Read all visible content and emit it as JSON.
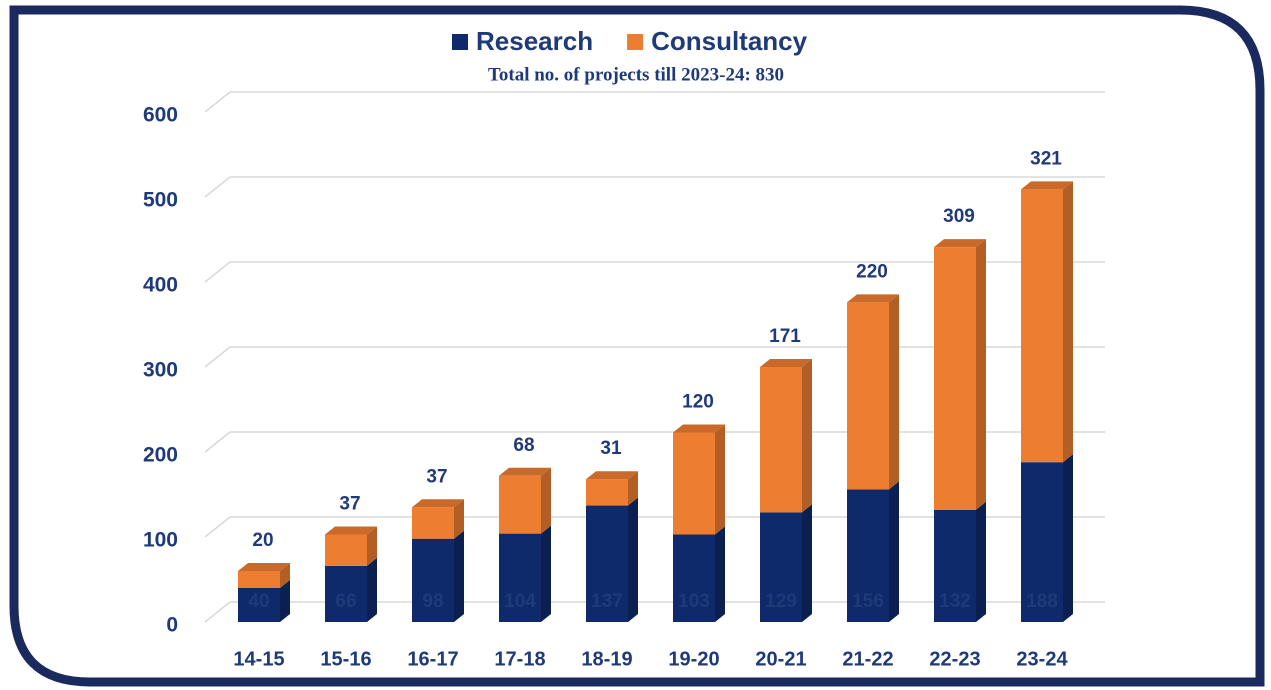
{
  "chart_data": {
    "type": "stacked_bar_3d",
    "subtitle": "Total no. of projects till 2023-24: 830",
    "categories": [
      "14-15",
      "15-16",
      "16-17",
      "17-18",
      "18-19",
      "19-20",
      "20-21",
      "21-22",
      "22-23",
      "23-24"
    ],
    "series": [
      {
        "name": "Research",
        "color": "#0f2a6b",
        "values": [
          40,
          66,
          98,
          104,
          137,
          103,
          129,
          156,
          132,
          188
        ]
      },
      {
        "name": "Consultancy",
        "color": "#ed7d31",
        "values": [
          20,
          37,
          37,
          68,
          31,
          120,
          171,
          220,
          309,
          321
        ]
      }
    ],
    "ylim": [
      0,
      600
    ],
    "yticks": [
      0,
      100,
      200,
      300,
      400,
      500,
      600
    ],
    "grid": true,
    "legend": "top"
  }
}
